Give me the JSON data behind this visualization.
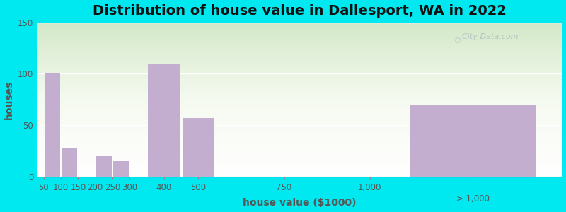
{
  "title": "Distribution of house value in Dallesport, WA in 2022",
  "xlabel": "house value ($1000)",
  "ylabel": "houses",
  "bar_color": "#c4aed0",
  "background_color_fig": "#00e8f0",
  "ylim": [
    0,
    150
  ],
  "yticks": [
    0,
    50,
    100,
    150
  ],
  "bars": [
    {
      "x_left": 50,
      "x_right": 100,
      "value": 100
    },
    {
      "x_left": 100,
      "x_right": 150,
      "value": 28
    },
    {
      "x_left": 200,
      "x_right": 250,
      "value": 20
    },
    {
      "x_left": 250,
      "x_right": 300,
      "value": 15
    },
    {
      "x_left": 350,
      "x_right": 450,
      "value": 110
    },
    {
      "x_left": 450,
      "x_right": 550,
      "value": 57
    },
    {
      "x_left": 1100,
      "x_right": 1500,
      "value": 70
    }
  ],
  "xtick_positions": [
    50,
    100,
    150,
    200,
    250,
    300,
    400,
    500,
    750,
    1000
  ],
  "xtick_labels": [
    "50",
    "100",
    "150",
    "200",
    "250",
    "300",
    "400",
    "500",
    "750",
    "1,000"
  ],
  "last_bar_label": "> 1,000",
  "xlim": [
    30,
    1560
  ],
  "title_fontsize": 14,
  "axis_label_fontsize": 10,
  "tick_fontsize": 8.5,
  "watermark": "City-Data.com"
}
